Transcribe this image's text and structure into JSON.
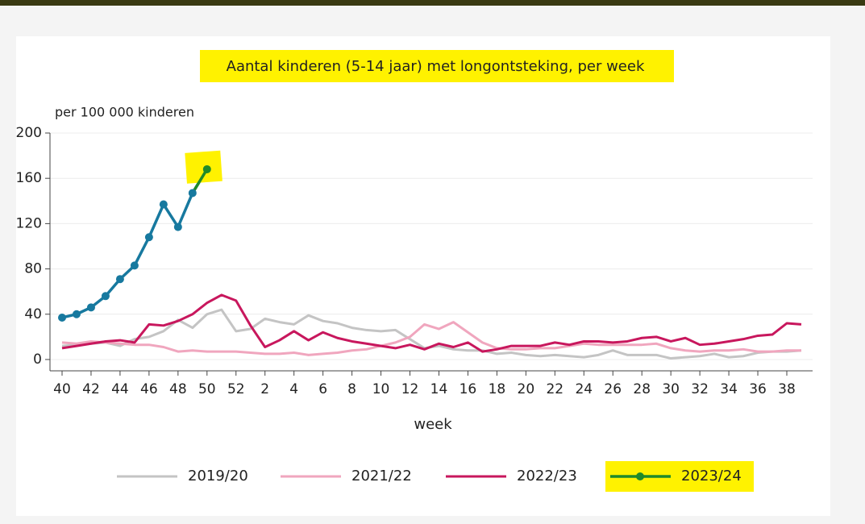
{
  "chart_data": {
    "type": "line",
    "title": "Aantal kinderen (5-14 jaar) met longontsteking, per week",
    "y_label": "per 100 000 kinderen",
    "x_label": "week",
    "categories": [
      40,
      null,
      42,
      null,
      44,
      null,
      46,
      null,
      48,
      null,
      50,
      null,
      52,
      null,
      2,
      null,
      4,
      null,
      6,
      null,
      8,
      null,
      10,
      null,
      12,
      null,
      14,
      null,
      16,
      null,
      18,
      null,
      20,
      null,
      22,
      null,
      24,
      null,
      26,
      null,
      28,
      null,
      30,
      null,
      32,
      null,
      34,
      null,
      36,
      null,
      38,
      null
    ],
    "ylim": [
      -10,
      200
    ],
    "yticks": [
      0,
      40,
      80,
      120,
      160,
      200
    ],
    "grid": true,
    "series": [
      {
        "name": "2019/20",
        "color": "#c4c4c4",
        "values": [
          12,
          13,
          14,
          15,
          12,
          18,
          20,
          25,
          35,
          28,
          40,
          44,
          25,
          27,
          36,
          33,
          31,
          39,
          34,
          32,
          28,
          26,
          25,
          26,
          18,
          10,
          12,
          9,
          8,
          8,
          5,
          6,
          4,
          3,
          4,
          3,
          2,
          4,
          8,
          4,
          4,
          4,
          1,
          2,
          3,
          5,
          2,
          3,
          6,
          7,
          7,
          8
        ]
      },
      {
        "name": "2021/22",
        "color": "#f0a6be",
        "values": [
          15,
          14,
          16,
          15,
          14,
          13,
          13,
          11,
          7,
          8,
          7,
          7,
          7,
          6,
          5,
          5,
          6,
          4,
          5,
          6,
          8,
          9,
          12,
          15,
          20,
          31,
          27,
          33,
          24,
          15,
          10,
          9,
          9,
          10,
          10,
          12,
          14,
          13,
          13,
          13,
          13,
          14,
          10,
          8,
          7,
          8,
          8,
          9,
          7,
          7,
          8,
          8
        ]
      },
      {
        "name": "2022/23",
        "color": "#c8175d",
        "values": [
          10,
          12,
          14,
          16,
          17,
          15,
          31,
          30,
          34,
          40,
          50,
          57,
          52,
          30,
          11,
          17,
          25,
          17,
          24,
          19,
          16,
          14,
          12,
          10,
          13,
          9,
          14,
          11,
          15,
          7,
          9,
          12,
          12,
          12,
          15,
          13,
          16,
          16,
          15,
          16,
          19,
          20,
          16,
          19,
          13,
          14,
          16,
          18,
          21,
          22,
          32,
          31
        ]
      },
      {
        "name": "2023/24",
        "color": "#17799f",
        "legend_color": "#1f8a2a",
        "markers": true,
        "values": [
          37,
          40,
          46,
          56,
          71,
          83,
          108,
          137,
          117,
          147,
          168,
          null,
          null,
          null,
          null,
          null,
          null,
          null,
          null,
          null,
          null,
          null,
          null,
          null,
          null,
          null,
          null,
          null,
          null,
          null,
          null,
          null,
          null,
          null,
          null,
          null,
          null,
          null,
          null,
          null,
          null,
          null,
          null,
          null,
          null,
          null,
          null,
          null,
          null,
          null,
          null,
          null
        ]
      }
    ]
  }
}
